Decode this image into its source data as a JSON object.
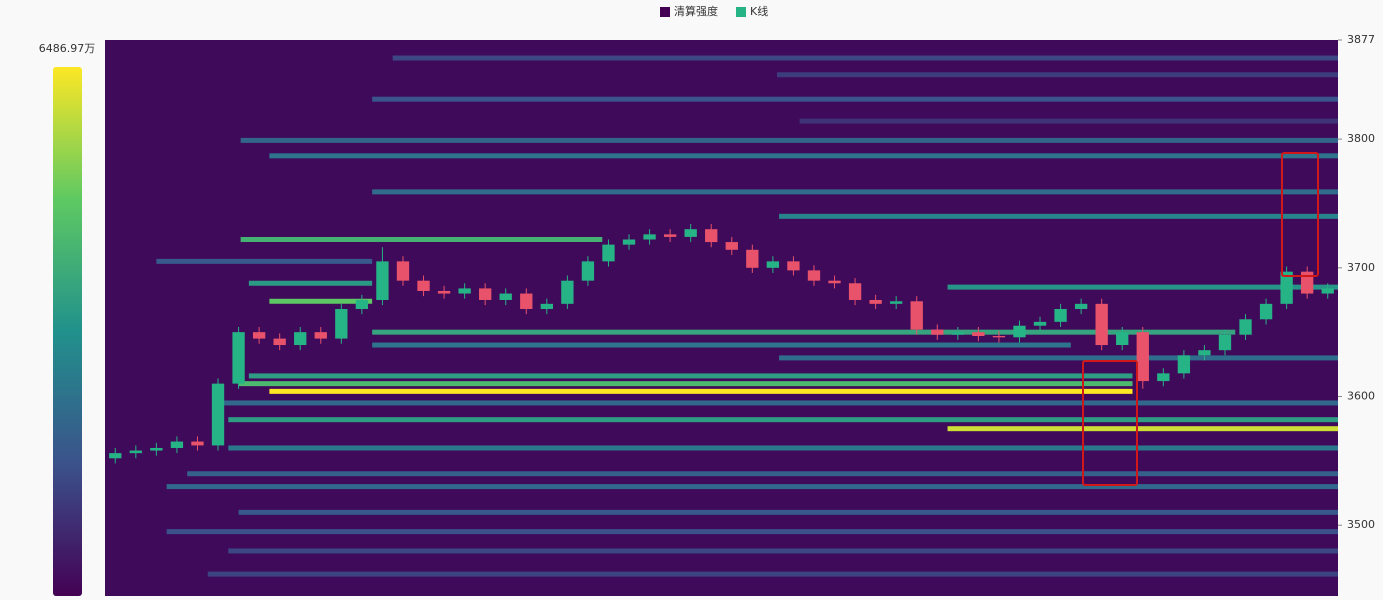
{
  "chart_data": {
    "type": "heatmap",
    "legend": [
      {
        "name": "清算强度",
        "color": "#440154"
      },
      {
        "name": "K线",
        "color": "#26b386"
      }
    ],
    "colorbar": {
      "max": {
        "value": 6486.97,
        "label": "6486.97万"
      }
    },
    "ylim": [
      3445,
      3877
    ],
    "yticks": [
      3500,
      3600,
      3700,
      3800,
      3877
    ],
    "xlim": [
      0,
      60
    ],
    "up_color": "#26b386",
    "down_color": "#e8526a",
    "background": "#3f0a5a",
    "candles": {
      "opens": [
        3552,
        3556,
        3558,
        3560,
        3565,
        3562,
        3610,
        3650,
        3645,
        3640,
        3650,
        3645,
        3668,
        3675,
        3705,
        3690,
        3682,
        3680,
        3684,
        3675,
        3680,
        3668,
        3672,
        3690,
        3705,
        3718,
        3722,
        3726,
        3724,
        3730,
        3720,
        3714,
        3700,
        3705,
        3698,
        3690,
        3688,
        3675,
        3672,
        3674,
        3652,
        3648,
        3650,
        3647,
        3646,
        3655,
        3658,
        3668,
        3672,
        3640,
        3650,
        3612,
        3618,
        3632,
        3636,
        3648,
        3660,
        3672,
        3697,
        3680
      ],
      "highs": [
        3560,
        3562,
        3564,
        3569,
        3569,
        3614,
        3654,
        3654,
        3649,
        3654,
        3654,
        3672,
        3679,
        3716,
        3709,
        3694,
        3686,
        3688,
        3688,
        3684,
        3684,
        3676,
        3694,
        3709,
        3722,
        3726,
        3730,
        3730,
        3734,
        3734,
        3724,
        3718,
        3709,
        3709,
        3702,
        3694,
        3692,
        3679,
        3678,
        3678,
        3656,
        3654,
        3654,
        3651,
        3659,
        3662,
        3672,
        3676,
        3676,
        3654,
        3654,
        3622,
        3636,
        3640,
        3652,
        3664,
        3676,
        3701,
        3701,
        3688
      ],
      "lows": [
        3548,
        3552,
        3554,
        3556,
        3558,
        3558,
        3606,
        3641,
        3636,
        3636,
        3641,
        3641,
        3664,
        3671,
        3686,
        3678,
        3676,
        3676,
        3671,
        3671,
        3664,
        3664,
        3668,
        3686,
        3701,
        3714,
        3718,
        3720,
        3720,
        3716,
        3710,
        3696,
        3696,
        3694,
        3686,
        3684,
        3671,
        3668,
        3668,
        3648,
        3644,
        3644,
        3643,
        3642,
        3642,
        3651,
        3654,
        3664,
        3636,
        3636,
        3606,
        3608,
        3614,
        3628,
        3632,
        3644,
        3656,
        3668,
        3676,
        3676
      ],
      "closes": [
        3556,
        3558,
        3560,
        3565,
        3562,
        3610,
        3650,
        3645,
        3640,
        3650,
        3645,
        3668,
        3675,
        3705,
        3690,
        3682,
        3680,
        3684,
        3675,
        3680,
        3668,
        3672,
        3690,
        3705,
        3718,
        3722,
        3726,
        3724,
        3730,
        3720,
        3714,
        3700,
        3705,
        3698,
        3690,
        3688,
        3675,
        3672,
        3674,
        3652,
        3648,
        3650,
        3647,
        3646,
        3655,
        3658,
        3668,
        3672,
        3640,
        3650,
        3612,
        3618,
        3632,
        3636,
        3648,
        3660,
        3672,
        3697,
        3680,
        3684
      ]
    },
    "bands": {
      "prices": [
        3863,
        3850,
        3831,
        3814,
        3799,
        3787,
        3759,
        3740,
        3722,
        3705,
        3688,
        3685,
        3674,
        3650,
        3640,
        3630,
        3616,
        3610,
        3604,
        3595,
        3582,
        3575,
        3560,
        3540,
        3530,
        3510,
        3495,
        3480,
        3462
      ],
      "starts": [
        14,
        32.7,
        13,
        33.8,
        6.6,
        8,
        13,
        32.8,
        6.6,
        2.5,
        7,
        41,
        8,
        13,
        13,
        32.8,
        7,
        6.5,
        8,
        5.5,
        6,
        41,
        6,
        4,
        3,
        6.5,
        3,
        6,
        5
      ],
      "ends": [
        60,
        60,
        60,
        60,
        60,
        60,
        60,
        60,
        24.2,
        13,
        13,
        60,
        13,
        55,
        47,
        60,
        50,
        50,
        50,
        60,
        60,
        60,
        60,
        60,
        60,
        60,
        60,
        60,
        60
      ],
      "values": [
        1400,
        1200,
        1700,
        1000,
        2100,
        2500,
        2300,
        2900,
        4200,
        1800,
        3500,
        3400,
        4800,
        3800,
        2500,
        2300,
        3600,
        4400,
        6487,
        2200,
        3600,
        6000,
        2600,
        2000,
        2200,
        1800,
        1600,
        1400,
        1300
      ]
    }
  }
}
